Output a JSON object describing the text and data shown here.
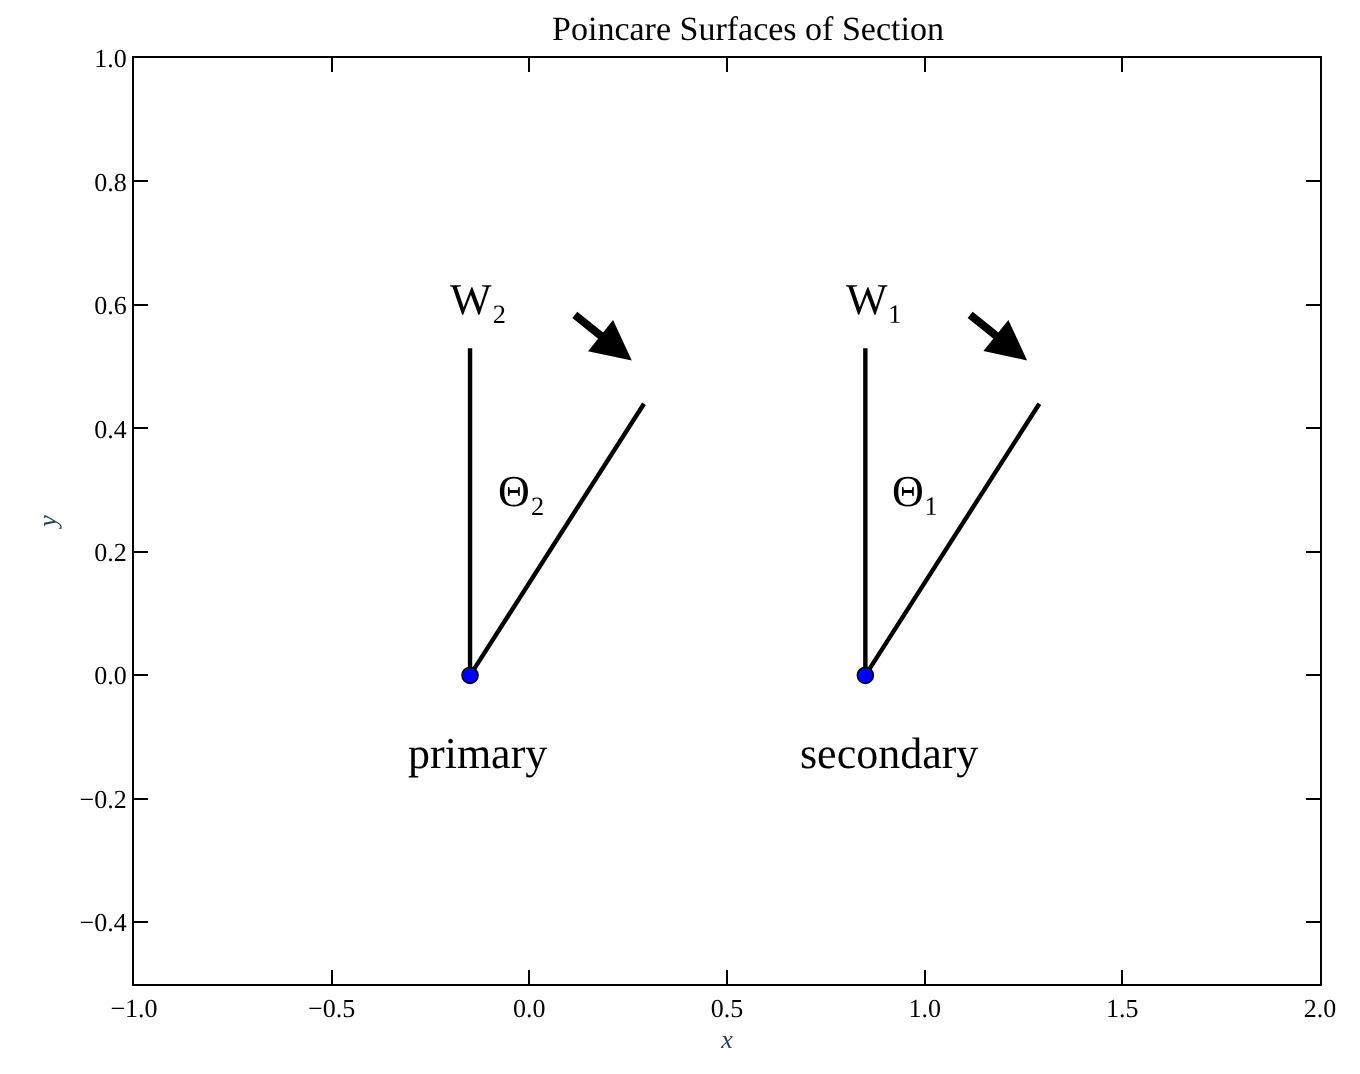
{
  "chart_data": {
    "type": "line",
    "title": "Poincare Surfaces of Section",
    "xlabel": "x",
    "ylabel": "y",
    "xlim": [
      -1.0,
      2.0
    ],
    "ylim": [
      -0.5,
      1.0
    ],
    "xticks": [
      {
        "value": -1.0,
        "label": "−1.0"
      },
      {
        "value": -0.5,
        "label": "−0.5"
      },
      {
        "value": 0.0,
        "label": "0.0"
      },
      {
        "value": 0.5,
        "label": "0.5"
      },
      {
        "value": 1.0,
        "label": "1.0"
      },
      {
        "value": 1.5,
        "label": "1.5"
      },
      {
        "value": 2.0,
        "label": "2.0"
      }
    ],
    "yticks": [
      {
        "value": -0.4,
        "label": "−0.4"
      },
      {
        "value": -0.2,
        "label": "−0.2"
      },
      {
        "value": 0.0,
        "label": "0.0"
      },
      {
        "value": 0.2,
        "label": "0.2"
      },
      {
        "value": 0.4,
        "label": "0.4"
      },
      {
        "value": 0.6,
        "label": "0.6"
      },
      {
        "value": 0.8,
        "label": "0.8"
      },
      {
        "value": 1.0,
        "label": "1.0"
      }
    ],
    "series": [
      {
        "color": "#000000",
        "marker": "none",
        "x": [
          -0.15,
          -0.15,
          0.29
        ],
        "values": [
          0.53,
          0.0,
          0.44
        ]
      },
      {
        "color": "#000000",
        "marker": "none",
        "x": [
          0.85,
          0.85,
          1.29
        ],
        "values": [
          0.53,
          0.0,
          0.44
        ]
      },
      {
        "type": "scatter",
        "color": "#0000ff",
        "marker": "circle",
        "x": [
          -0.15,
          0.85
        ],
        "values": [
          0.0,
          0.0
        ]
      }
    ],
    "annotations": [
      "W₂",
      "Θ₂",
      "primary",
      "W₁",
      "Θ₁",
      "secondary"
    ]
  }
}
